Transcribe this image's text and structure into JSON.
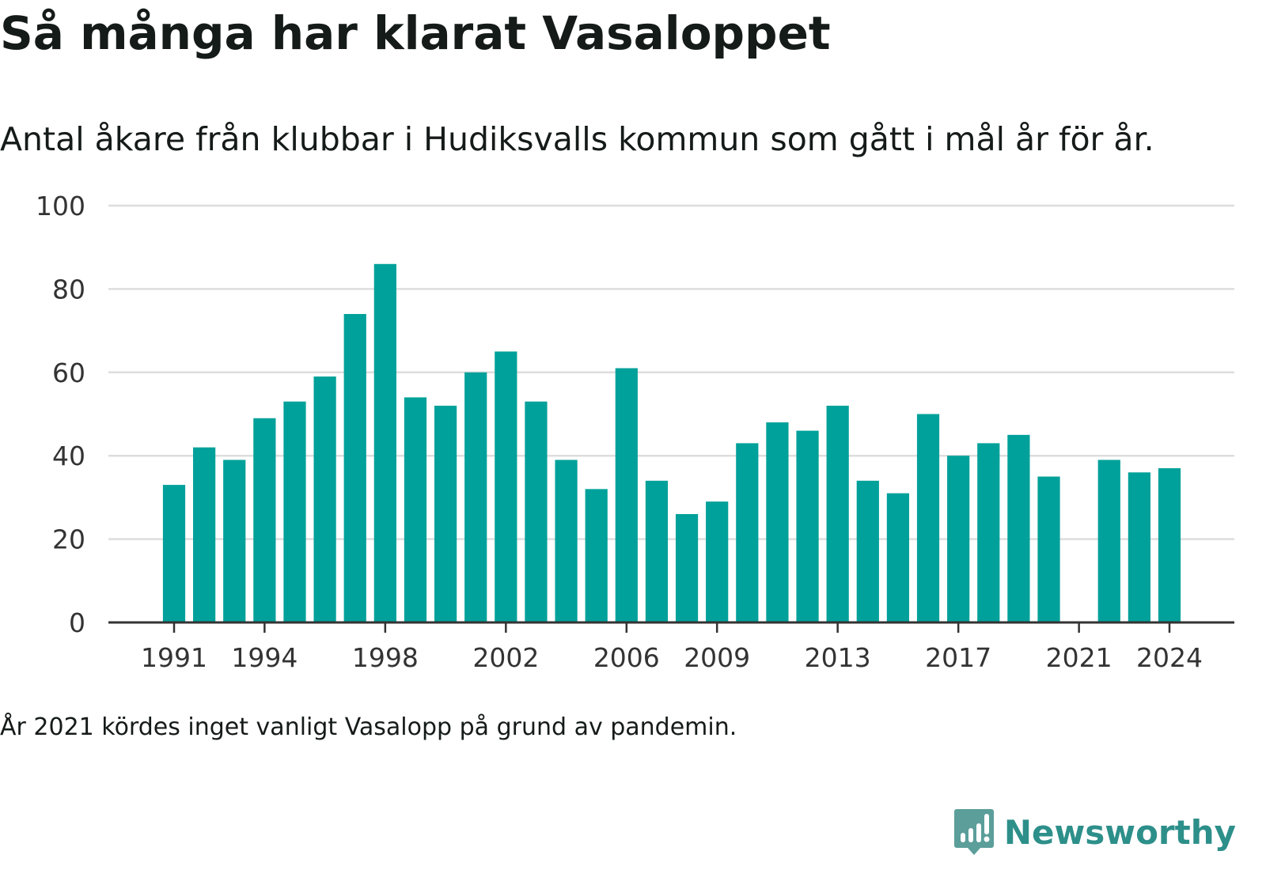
{
  "title": "Så många har klarat Vasaloppet",
  "subtitle": "Antal åkare från klubbar i Hudiksvalls kommun som gått i mål år för år.",
  "footnote": "År 2021 kördes inget vanligt Vasalopp på grund av pandemin.",
  "brand": {
    "name": "Newsworthy",
    "icon": "newsworthy-logo-icon",
    "color": "#2d8f8a"
  },
  "colors": {
    "bar": "#00a19a",
    "grid": "#dddddd",
    "axis": "#333333"
  },
  "chart_data": {
    "type": "bar",
    "x": [
      1991,
      1992,
      1993,
      1994,
      1995,
      1996,
      1997,
      1998,
      1999,
      2000,
      2001,
      2002,
      2003,
      2004,
      2005,
      2006,
      2007,
      2008,
      2009,
      2010,
      2011,
      2012,
      2013,
      2014,
      2015,
      2016,
      2017,
      2018,
      2019,
      2020,
      2021,
      2022,
      2023,
      2024
    ],
    "values": [
      33,
      42,
      39,
      49,
      53,
      59,
      74,
      86,
      54,
      52,
      60,
      65,
      53,
      39,
      32,
      61,
      34,
      26,
      29,
      43,
      48,
      46,
      52,
      34,
      31,
      50,
      40,
      43,
      45,
      35,
      null,
      39,
      36,
      37
    ],
    "x_tick_labels": [
      "1991",
      "1994",
      "1998",
      "2002",
      "2006",
      "2009",
      "2013",
      "2017",
      "2021",
      "2024"
    ],
    "y_ticks": [
      "0",
      "20",
      "40",
      "60",
      "80",
      "100"
    ],
    "ylim": [
      0,
      100
    ],
    "grid": true,
    "legend": "none"
  }
}
